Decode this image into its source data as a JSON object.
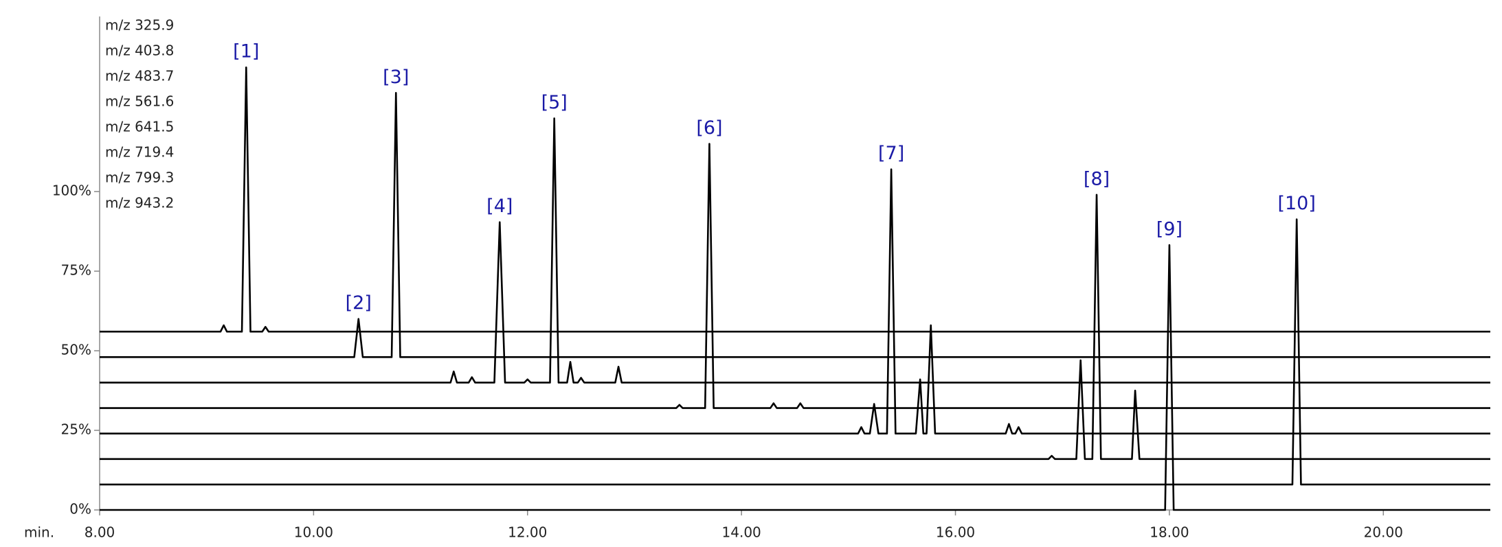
{
  "chart_data": {
    "type": "line",
    "xlabel": "min.",
    "xlim": [
      8,
      21
    ],
    "xticks": [
      {
        "value": 8,
        "label": "8.00"
      },
      {
        "value": 10,
        "label": "10.00"
      },
      {
        "value": 12,
        "label": "12.00"
      },
      {
        "value": 14,
        "label": "14.00"
      },
      {
        "value": 16,
        "label": "16.00"
      },
      {
        "value": 18,
        "label": "18.00"
      },
      {
        "value": 20,
        "label": "20.00"
      }
    ],
    "ylim": [
      0,
      155
    ],
    "yticks": [
      {
        "value": 0,
        "label": "0%"
      },
      {
        "value": 25,
        "label": "25%"
      },
      {
        "value": 50,
        "label": "50%"
      },
      {
        "value": 75,
        "label": "75%"
      },
      {
        "value": 100,
        "label": "100%"
      }
    ],
    "color": "#000000",
    "series": [
      {
        "name": "m/z 325.9",
        "x": [
          8,
          9.13,
          9.16,
          9.19,
          9.33,
          9.37,
          9.41,
          9.52,
          9.55,
          9.58,
          21
        ],
        "values": [
          56,
          56,
          58,
          56,
          56,
          139,
          56,
          56,
          57.5,
          56,
          56
        ]
      },
      {
        "name": "m/z 403.8",
        "x": [
          8,
          10.38,
          10.42,
          10.46,
          10.73,
          10.77,
          10.81,
          21
        ],
        "values": [
          48,
          48,
          60,
          48,
          48,
          131,
          48,
          48
        ]
      },
      {
        "name": "m/z 483.7",
        "x": [
          8,
          11.28,
          11.31,
          11.34,
          11.45,
          11.48,
          11.51,
          11.69,
          11.74,
          11.79,
          11.97,
          12.0,
          12.03,
          12.21,
          12.25,
          12.29,
          12.37,
          12.4,
          12.43,
          12.47,
          12.5,
          12.53,
          12.82,
          12.85,
          12.88,
          21
        ],
        "values": [
          40,
          40,
          43.5,
          40,
          40,
          41.7,
          40,
          40,
          90.4,
          40,
          40,
          41,
          40,
          40,
          123,
          40,
          40,
          46.5,
          40,
          40,
          41.5,
          40,
          40,
          45,
          40,
          40
        ]
      },
      {
        "name": "m/z 561.6",
        "x": [
          8,
          13.39,
          13.42,
          13.45,
          13.66,
          13.7,
          13.74,
          14.27,
          14.3,
          14.33,
          14.52,
          14.55,
          14.58,
          21
        ],
        "values": [
          32,
          32,
          33,
          32,
          32,
          115,
          32,
          32,
          33.5,
          32,
          32,
          33.5,
          32,
          32
        ]
      },
      {
        "name": "m/z 641.5",
        "x": [
          8,
          15.09,
          15.12,
          15.15,
          15.2,
          15.24,
          15.28,
          15.36,
          15.4,
          15.44,
          15.63,
          15.67,
          15.7,
          15.73,
          15.77,
          15.81,
          16.47,
          16.5,
          16.53,
          16.56,
          16.59,
          16.62,
          21
        ],
        "values": [
          24,
          24,
          26,
          24,
          24,
          33.3,
          24,
          24,
          107,
          24,
          24,
          41,
          24,
          24,
          58,
          24,
          24,
          27,
          24,
          24,
          26,
          24,
          24
        ]
      },
      {
        "name": "m/z 719.4",
        "x": [
          8,
          16.87,
          16.9,
          16.93,
          17.13,
          17.17,
          17.21,
          17.28,
          17.32,
          17.36,
          17.65,
          17.68,
          17.72,
          21
        ],
        "values": [
          16,
          16,
          17,
          16,
          16,
          47,
          16,
          16,
          99,
          16,
          16,
          37.5,
          16,
          16
        ]
      },
      {
        "name": "m/z 799.3",
        "x": [
          8,
          19.15,
          19.19,
          19.23,
          21
        ],
        "values": [
          8,
          8,
          91.3,
          8,
          8
        ]
      },
      {
        "name": "m/z 943.2",
        "x": [
          8,
          17.96,
          18.0,
          18.04,
          21
        ],
        "values": [
          0,
          0,
          83.2,
          0,
          0
        ]
      }
    ],
    "annotations": [
      {
        "text": "[1]",
        "x": 9.37,
        "y": 139
      },
      {
        "text": "[2]",
        "x": 10.42,
        "y": 60
      },
      {
        "text": "[3]",
        "x": 10.77,
        "y": 131
      },
      {
        "text": "[4]",
        "x": 11.74,
        "y": 90.4
      },
      {
        "text": "[5]",
        "x": 12.25,
        "y": 123
      },
      {
        "text": "[6]",
        "x": 13.7,
        "y": 115
      },
      {
        "text": "[7]",
        "x": 15.4,
        "y": 107
      },
      {
        "text": "[8]",
        "x": 17.32,
        "y": 99
      },
      {
        "text": "[9]",
        "x": 18.0,
        "y": 83.2
      },
      {
        "text": "[10]",
        "x": 19.19,
        "y": 91.3
      }
    ]
  }
}
